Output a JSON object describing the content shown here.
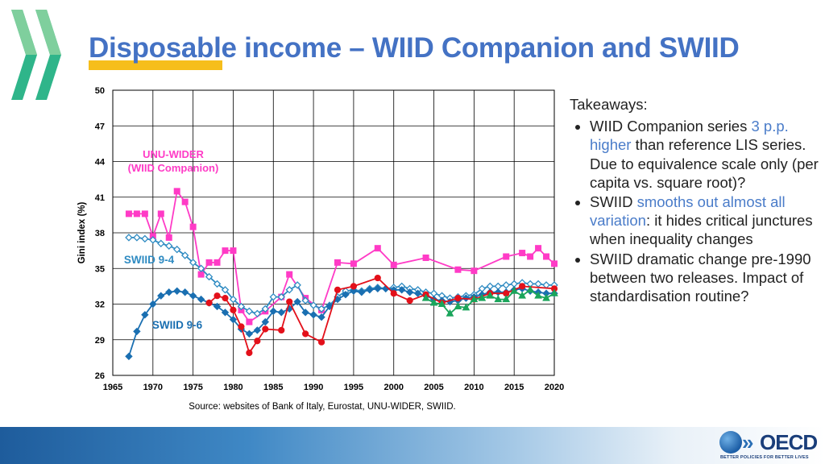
{
  "slide": {
    "title": "Disposable income – WIID Companion and SWIID",
    "source": "Source: websites of Bank of Italy, Eurostat, UNU-WIDER, SWIID."
  },
  "takeaways": {
    "heading": "Takeaways:",
    "items": [
      {
        "pre": "WIID Companion series ",
        "hl": "3 p.p. higher",
        "post": " than reference LIS series. Due to equivalence scale only (per capita vs. square root)?"
      },
      {
        "pre": "SWIID ",
        "hl": "smooths out almost all variation",
        "post": ": it hides critical junctures when inequality changes"
      },
      {
        "pre": "SWIID dramatic change pre-1990 between two releases. Impact of standardisation routine?",
        "hl": "",
        "post": ""
      }
    ]
  },
  "logo": {
    "name": "OECD",
    "tagline": "BETTER POLICIES FOR BETTER LIVES"
  },
  "colors": {
    "title": "#4472c4",
    "highlight": "#4a7cc9",
    "underline": "#f6be1b",
    "wiid_companion": "#ff3bc6",
    "swiid_94": "#2f8bc2",
    "swiid_96": "#1a6fb1",
    "red_series": "#e3101a",
    "green_series": "#1aa55b"
  },
  "chart_data": {
    "type": "line",
    "title": "",
    "xlabel": "",
    "ylabel": "Gini index (%)",
    "xlim": [
      1965,
      2020
    ],
    "ylim": [
      26,
      50
    ],
    "xticks": [
      1965,
      1970,
      1975,
      1980,
      1985,
      1990,
      1995,
      2000,
      2005,
      2010,
      2015,
      2020
    ],
    "yticks": [
      26,
      29,
      32,
      35,
      38,
      41,
      44,
      47,
      50
    ],
    "grid": true,
    "annotations": [
      {
        "text": "UNU-WIDER",
        "series": "wiid"
      },
      {
        "text": "(WIID Companion)",
        "series": "wiid"
      },
      {
        "text": "SWIID 9-4",
        "series": "swiid94"
      },
      {
        "text": "SWIID 9-6",
        "series": "swiid96"
      }
    ],
    "series": [
      {
        "name": "UNU-WIDER (WIID Companion)",
        "color": "#ff3bc6",
        "marker": "square",
        "x": [
          1967,
          1968,
          1969,
          1970,
          1971,
          1972,
          1973,
          1974,
          1975,
          1976,
          1977,
          1978,
          1979,
          1980,
          1981,
          1982,
          1984,
          1986,
          1987,
          1989,
          1991,
          1993,
          1995,
          1998,
          2000,
          2004,
          2008,
          2010,
          2014,
          2016,
          2017,
          2018,
          2019,
          2020
        ],
        "y": [
          39.6,
          39.6,
          39.6,
          37.7,
          39.6,
          37.6,
          41.5,
          40.6,
          38.5,
          34.5,
          35.5,
          35.5,
          36.5,
          36.5,
          31.5,
          30.5,
          31.4,
          32.6,
          34.5,
          32.5,
          31.5,
          35.5,
          35.4,
          36.7,
          35.3,
          35.9,
          34.9,
          34.8,
          36.0,
          36.3,
          36.0,
          36.7,
          36.0,
          35.4
        ]
      },
      {
        "name": "SWIID 9-4",
        "color": "#2f8bc2",
        "marker": "diamond-open",
        "x": [
          1967,
          1968,
          1969,
          1970,
          1971,
          1972,
          1973,
          1974,
          1975,
          1976,
          1977,
          1978,
          1979,
          1980,
          1981,
          1982,
          1983,
          1984,
          1985,
          1986,
          1987,
          1988,
          1989,
          1990,
          1991,
          1992,
          1993,
          1994,
          1995,
          1996,
          1997,
          1998,
          1999,
          2000,
          2001,
          2002,
          2003,
          2004,
          2005,
          2006,
          2007,
          2008,
          2009,
          2010,
          2011,
          2012,
          2013,
          2014,
          2015,
          2016,
          2017,
          2018,
          2019,
          2020
        ],
        "y": [
          37.6,
          37.6,
          37.5,
          37.4,
          37.1,
          36.9,
          36.6,
          36.1,
          35.5,
          35.0,
          34.3,
          33.7,
          33.2,
          32.4,
          31.8,
          31.4,
          31.2,
          31.6,
          32.6,
          32.6,
          33.2,
          33.6,
          32.3,
          31.9,
          31.6,
          31.9,
          32.6,
          33.1,
          33.2,
          33.1,
          33.3,
          33.4,
          33.3,
          33.4,
          33.5,
          33.3,
          33.2,
          33.0,
          32.9,
          32.7,
          32.5,
          32.6,
          32.7,
          32.8,
          33.3,
          33.5,
          33.5,
          33.6,
          33.7,
          33.8,
          33.7,
          33.7,
          33.6,
          33.6
        ]
      },
      {
        "name": "SWIID 9-6",
        "color": "#1a6fb1",
        "marker": "diamond",
        "x": [
          1967,
          1968,
          1969,
          1970,
          1971,
          1972,
          1973,
          1974,
          1975,
          1976,
          1977,
          1978,
          1979,
          1980,
          1981,
          1982,
          1983,
          1984,
          1985,
          1986,
          1987,
          1988,
          1989,
          1990,
          1991,
          1992,
          1993,
          1994,
          1995,
          1996,
          1997,
          1998,
          1999,
          2000,
          2001,
          2002,
          2003,
          2004,
          2005,
          2006,
          2007,
          2008,
          2009,
          2010,
          2011,
          2012,
          2013,
          2014,
          2015,
          2016,
          2017,
          2018,
          2019,
          2020
        ],
        "y": [
          27.6,
          29.7,
          31.1,
          32.0,
          32.7,
          33.0,
          33.1,
          33.0,
          32.7,
          32.4,
          32.1,
          31.8,
          31.3,
          30.7,
          29.9,
          29.5,
          29.8,
          30.5,
          31.4,
          31.3,
          31.6,
          32.2,
          31.3,
          31.1,
          30.9,
          31.8,
          32.4,
          32.8,
          33.1,
          33.0,
          33.2,
          33.3,
          33.3,
          33.2,
          33.2,
          33.0,
          32.9,
          32.7,
          32.4,
          32.3,
          32.2,
          32.3,
          32.5,
          32.6,
          32.8,
          33.0,
          33.0,
          33.0,
          33.2,
          33.3,
          33.1,
          33.0,
          32.9,
          32.9
        ]
      },
      {
        "name": "",
        "color": "#e3101a",
        "marker": "circle",
        "x": [
          1977,
          1978,
          1979,
          1980,
          1981,
          1982,
          1983,
          1984,
          1986,
          1987,
          1989,
          1991,
          1993,
          1995,
          1998,
          2000,
          2002,
          2004,
          2006,
          2008,
          2010,
          2012,
          2014,
          2016,
          2020
        ],
        "y": [
          32.1,
          32.7,
          32.5,
          31.5,
          30.1,
          27.9,
          28.9,
          29.9,
          29.8,
          32.2,
          29.5,
          28.8,
          33.2,
          33.5,
          34.2,
          32.9,
          32.3,
          32.8,
          32.1,
          32.5,
          32.4,
          32.9,
          32.9,
          33.5,
          33.3
        ]
      },
      {
        "name": "",
        "color": "#1aa55b",
        "marker": "triangle",
        "x": [
          2004,
          2005,
          2006,
          2007,
          2008,
          2009,
          2010,
          2011,
          2012,
          2013,
          2014,
          2015,
          2016,
          2017,
          2018,
          2019,
          2020
        ],
        "y": [
          32.5,
          32.1,
          32.0,
          31.2,
          31.8,
          31.7,
          32.4,
          32.5,
          32.7,
          32.4,
          32.4,
          33.1,
          32.7,
          33.2,
          32.7,
          32.5,
          32.9
        ]
      }
    ]
  }
}
